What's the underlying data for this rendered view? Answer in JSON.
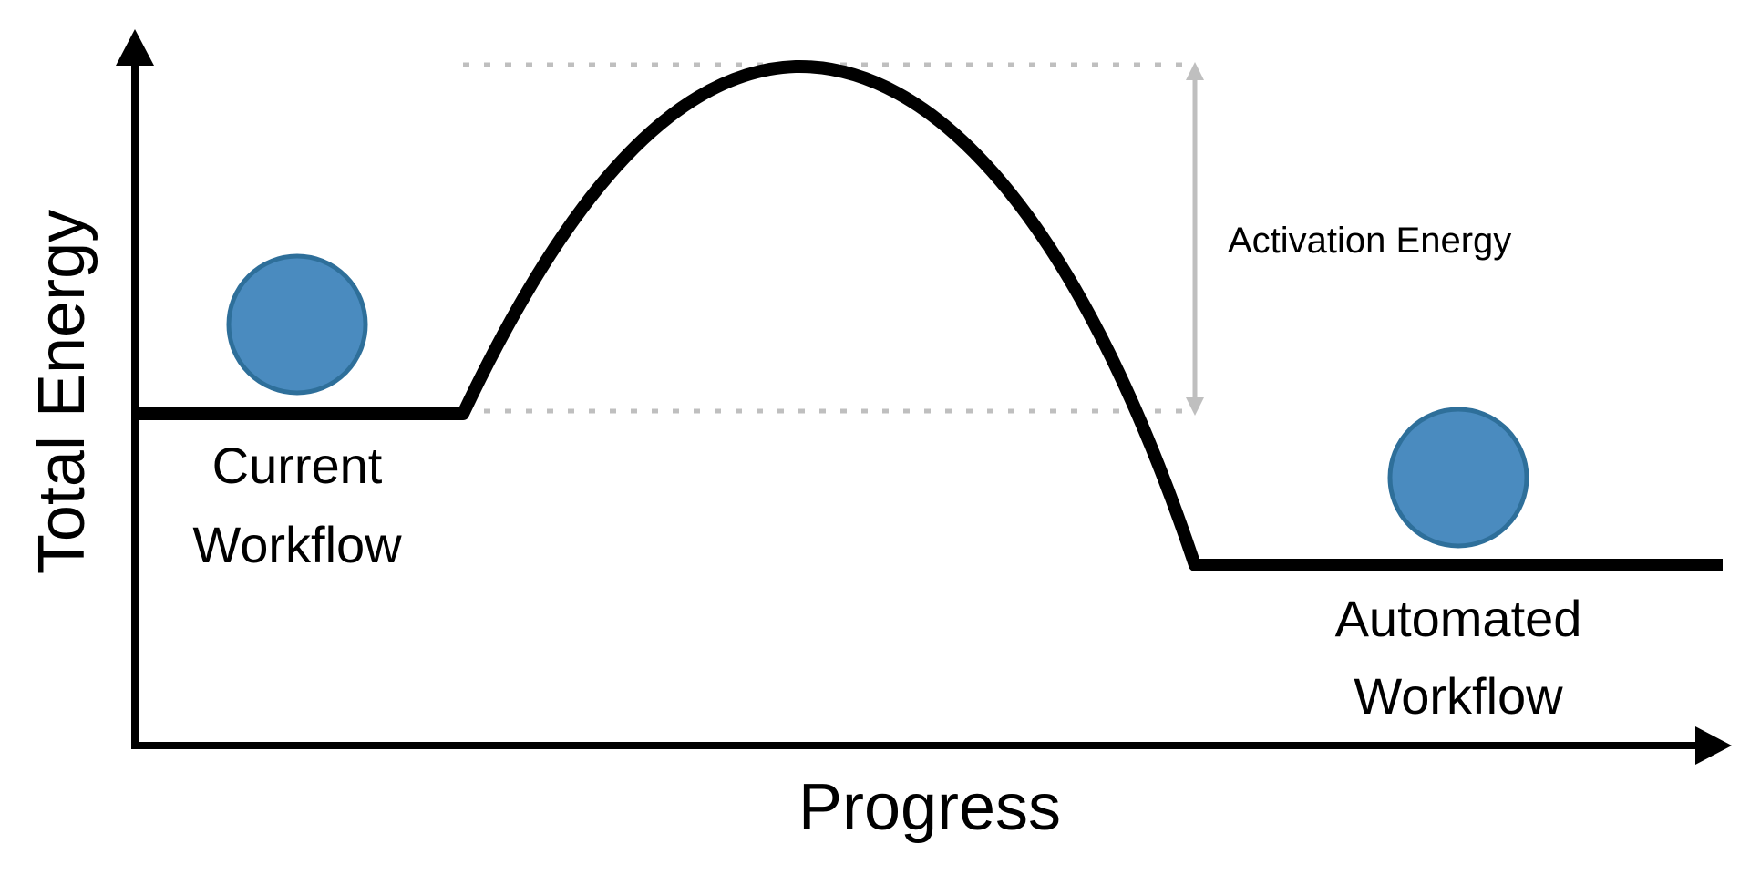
{
  "diagram": {
    "y_axis_label": "Total Energy",
    "x_axis_label": "Progress",
    "current_state": {
      "label_line1": "Current",
      "label_line2": "Workflow"
    },
    "final_state": {
      "label_line1": "Automated",
      "label_line2": "Workflow"
    },
    "barrier": {
      "label": "Activation Energy"
    },
    "colors": {
      "ball_fill": "#4a8bbf",
      "ball_stroke": "#2e6f9a",
      "curve": "#000000",
      "axis": "#000000",
      "guide": "#bfbfbf"
    }
  }
}
